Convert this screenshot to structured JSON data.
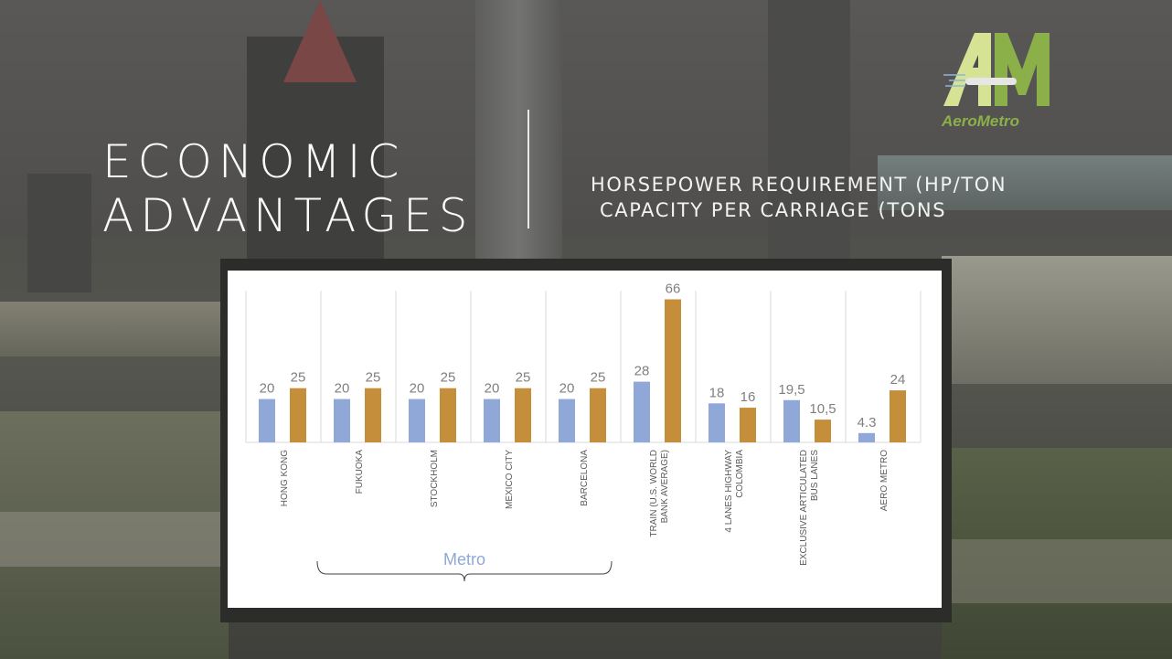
{
  "slide": {
    "title_line1": "ECONOMIC",
    "title_line2": "ADVANTAGES",
    "subtitle_line1": "HORSEPOWER REQUIREMENT (HP/TON",
    "subtitle_line2": "CAPACITY PER CARRIAGE (TONS"
  },
  "logo": {
    "text": "AeroMetro"
  },
  "colors": {
    "series_hp": "#8fa8d8",
    "series_capacity": "#c58e3b",
    "logo_green": "#8bb04a",
    "logo_light": "#d7e394"
  },
  "chart_data": {
    "type": "bar",
    "categories": [
      "HONG KONG",
      "FUKUOKA",
      "STOCKHOLM",
      "MEXICO CITY",
      "BARCELONA",
      "TRAIN (U.S. WORLD BANK AVERAGE)",
      "4 LANES HIGHWAY COLOMBIA",
      "EXCLUSIVE ARTICULATED BUS LANES",
      "AERO METRO"
    ],
    "series": [
      {
        "values": [
          20,
          20,
          20,
          20,
          20,
          28,
          18,
          19.5,
          4.3
        ],
        "labels": [
          "20",
          "20",
          "20",
          "20",
          "20",
          "28",
          "18",
          "19,5",
          "4.3"
        ]
      },
      {
        "values": [
          25,
          25,
          25,
          25,
          25,
          66,
          16,
          10.5,
          24
        ],
        "labels": [
          "25",
          "25",
          "25",
          "25",
          "25",
          "66",
          "16",
          "10,5",
          "24"
        ]
      }
    ],
    "ylim": [
      0,
      70
    ],
    "grid": "vertical separators",
    "annotations": [
      {
        "text": "Metro",
        "spans": [
          "HONG KONG",
          "BARCELONA"
        ]
      }
    ]
  }
}
